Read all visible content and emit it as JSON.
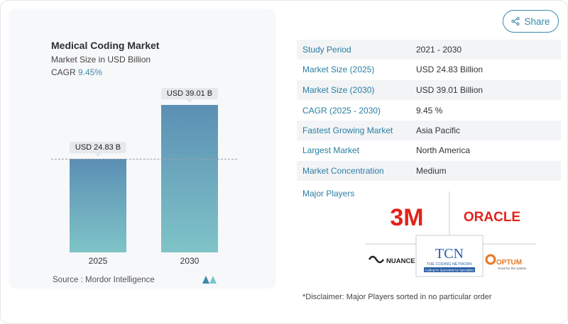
{
  "chart_card": {
    "title": "Medical Coding Market",
    "subtitle": "Market Size in USD Billion",
    "cagr_label": "CAGR",
    "cagr_value": "9.45%",
    "source": "Source :  Mordor Intelligence"
  },
  "chart_data": {
    "type": "bar",
    "categories": [
      "2025",
      "2030"
    ],
    "values": [
      24.83,
      39.01
    ],
    "data_labels": [
      "USD 24.83 B",
      "USD 39.01 B"
    ],
    "title": "Medical Coding Market",
    "ylabel": "Market Size in USD Billion",
    "reference_line": 24.83,
    "grid": false
  },
  "share": {
    "label": "Share",
    "icon": "share-icon"
  },
  "stats": [
    {
      "key": "Study Period",
      "value": "2021 - 2030"
    },
    {
      "key": "Market Size (2025)",
      "value": "USD 24.83 Billion"
    },
    {
      "key": "Market Size (2030)",
      "value": "USD 39.01 Billion"
    },
    {
      "key": "CAGR (2025 - 2030)",
      "value": "9.45 %"
    },
    {
      "key": "Fastest Growing Market",
      "value": "Asia Pacific"
    },
    {
      "key": "Largest Market",
      "value": "North America"
    },
    {
      "key": "Market Concentration",
      "value": "Medium"
    }
  ],
  "players": {
    "label": "Major Players",
    "logos": [
      "3M",
      "ORACLE",
      "NUANCE",
      "TCN",
      "THE CODING NETWORK",
      "Coding for Specialists by Specialists",
      "OPTUM",
      "Good for the system"
    ]
  },
  "disclaimer": "*Disclaimer: Major Players sorted in no particular order",
  "colors": {
    "accent": "#2a7ea3",
    "bar_top": "#5b8fb4",
    "bar_bottom": "#7fc4c8",
    "logo_3m": "#e2231a",
    "logo_oracle": "#e2231a",
    "logo_tcn": "#2b5fa6",
    "logo_optum": "#e87722"
  }
}
